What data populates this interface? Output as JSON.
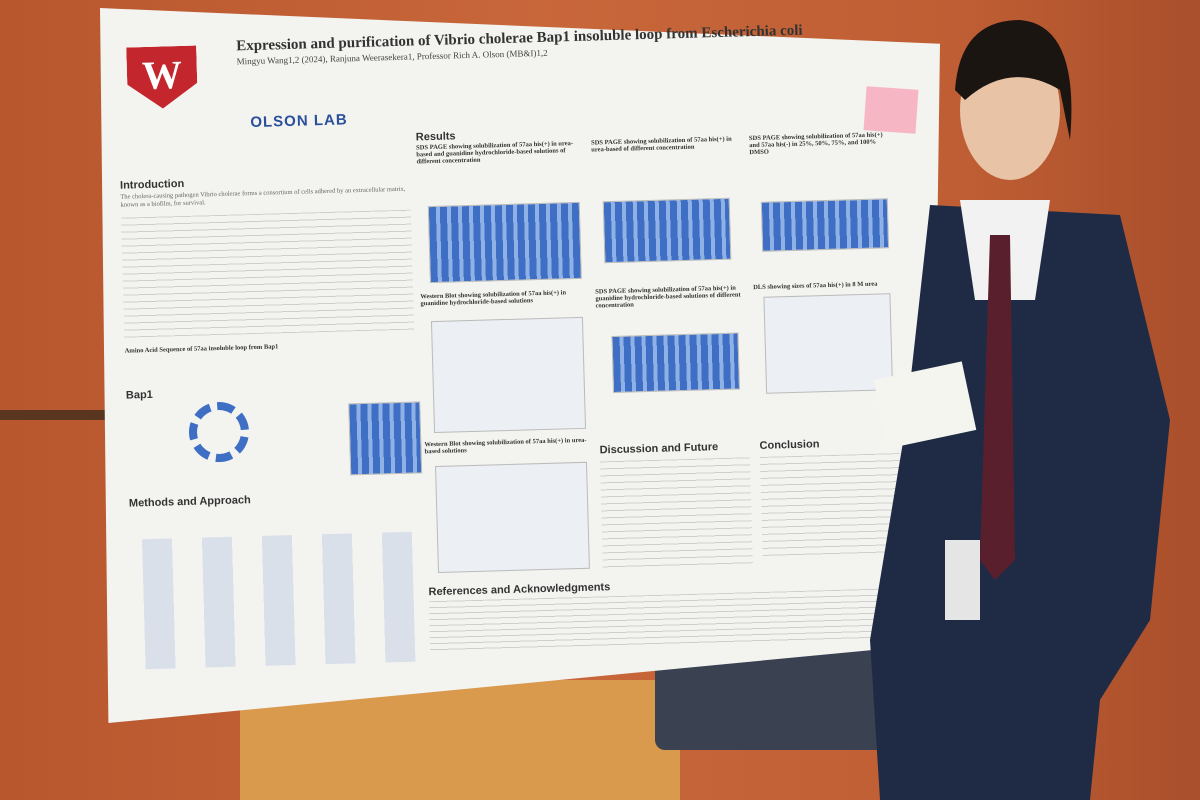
{
  "poster": {
    "logo": "W",
    "lab": "OLSON LAB",
    "title": "Expression and purification of Vibrio cholerae Bap1 insoluble loop from Escherichia coli",
    "authors": "Mingyu Wang1,2 (2024), Ranjuna Weerasekera1, Professor Rich A. Olson (MB&I)1,2",
    "sections": {
      "introduction": "Introduction",
      "bap1": "Bap1",
      "methods": "Methods and Approach",
      "results": "Results",
      "discussion": "Discussion and Future",
      "conclusion": "Conclusion",
      "references": "References and Acknowledgments"
    },
    "intro_text": "The cholera-causing pathogen Vibrio cholerae forms a consortium of cells adhered by an extracellular matrix, known as a biofilm, for survival.",
    "sequence_heading": "Amino Acid Sequence of 57aa insoluble loop from Bap1",
    "figures": [
      "SDS PAGE showing solubilization of 57aa his(+) in urea-based and guanidine hydrochloride-based solutions of different concentration",
      "SDS PAGE showing solubilization of 57aa his(+) in urea-based of different concentration",
      "SDS PAGE showing solubilization of 57aa his(+) and 57aa his(-) in 25%, 50%, 75%, and 100% DMSO",
      "Western Blot showing solubilization of 57aa his(+) in guanidine hydrochloride-based solutions",
      "SDS PAGE showing solubilization of 57aa his(+) in guanidine hydrochloride-based solutions of different concentration",
      "DLS showing sizes of 57aa his(+) in 8 M urea",
      "Western Blot showing solubilization of 57aa his(+) in urea-based solutions"
    ]
  }
}
